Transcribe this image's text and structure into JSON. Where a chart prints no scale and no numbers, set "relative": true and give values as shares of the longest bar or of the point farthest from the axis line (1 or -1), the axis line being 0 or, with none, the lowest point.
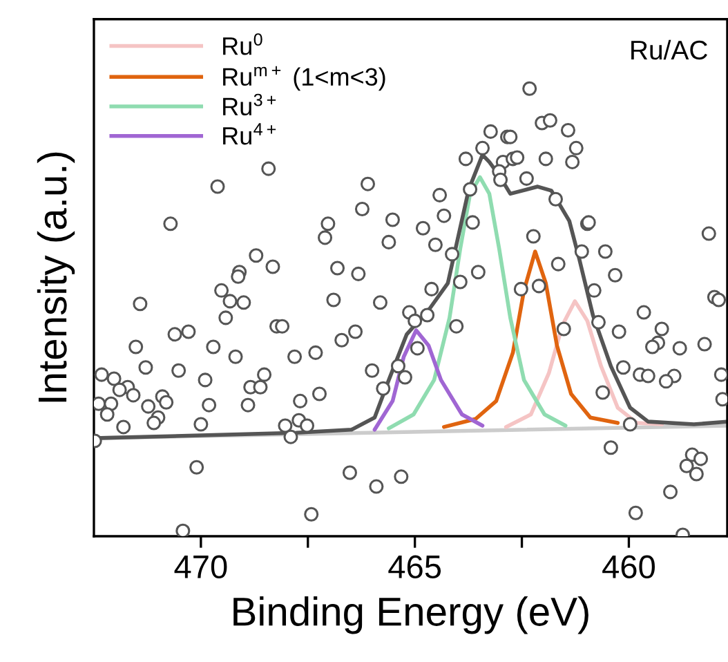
{
  "chart_data": {
    "type": "scatter",
    "relative": true,
    "xlabel": "Binding Energy (eV)",
    "ylabel": "Intensity (a.u.)",
    "annotations": [
      "Ru/AC"
    ],
    "xlim": [
      472.5,
      457.7
    ],
    "xticks": [
      470,
      {
        "value": 467.5,
        "label": null
      },
      465,
      {
        "value": 462.5,
        "label": null
      },
      460
    ],
    "tick_labels": "x",
    "grid": false,
    "legend": "top left",
    "series": [
      {
        "type": "line",
        "color": "#cccccc",
        "x": [
          472.5,
          457.7
        ],
        "values": [
          0.219,
          0.247
        ]
      },
      {
        "type": "line",
        "name": "Ru$^{0}$",
        "color": "#f5c4c4",
        "x": [
          462.87,
          462.29,
          461.87,
          461.55,
          461.26,
          460.97,
          460.65,
          460.26,
          459.81,
          459.23
        ],
        "values": [
          0.244,
          0.272,
          0.364,
          0.472,
          0.525,
          0.481,
          0.38,
          0.287,
          0.253,
          0.25
        ]
      },
      {
        "type": "line",
        "name": "Ru$^{m+}$ (1<m<3)",
        "color": "#e0640f",
        "x": [
          464.32,
          463.58,
          463.1,
          462.71,
          462.45,
          462.19,
          461.94,
          461.68,
          461.35,
          460.9,
          460.26
        ],
        "values": [
          0.244,
          0.262,
          0.302,
          0.41,
          0.549,
          0.636,
          0.565,
          0.426,
          0.318,
          0.265,
          0.253
        ]
      },
      {
        "type": "line",
        "name": "Ru$^{3+}$",
        "color": "#8fdcb0",
        "x": [
          465.61,
          465.03,
          464.55,
          464.19,
          463.94,
          463.71,
          463.48,
          463.26,
          463.03,
          462.77,
          462.45,
          461.97,
          461.48
        ],
        "values": [
          0.241,
          0.272,
          0.349,
          0.488,
          0.642,
          0.765,
          0.802,
          0.765,
          0.642,
          0.488,
          0.349,
          0.272,
          0.247
        ]
      },
      {
        "type": "line",
        "name": "Ru$^{4+}$",
        "color": "#a066d3",
        "x": [
          465.94,
          465.52,
          465.26,
          464.97,
          464.68,
          464.39,
          463.9,
          463.42
        ],
        "values": [
          0.238,
          0.302,
          0.401,
          0.46,
          0.426,
          0.349,
          0.272,
          0.247
        ]
      },
      {
        "type": "line",
        "color": "#555555",
        "x": [
          472.5,
          467.77,
          466.48,
          465.94,
          465.61,
          465.19,
          464.65,
          464.23,
          463.74,
          463.42,
          463.26,
          463.03,
          462.77,
          462.13,
          461.81,
          461.39,
          461.16,
          460.84,
          460.42,
          459.97,
          459.55,
          458.48,
          457.71
        ],
        "values": [
          0.219,
          0.231,
          0.238,
          0.265,
          0.349,
          0.451,
          0.509,
          0.565,
          0.775,
          0.852,
          0.836,
          0.806,
          0.765,
          0.781,
          0.772,
          0.704,
          0.62,
          0.494,
          0.38,
          0.287,
          0.256,
          0.25,
          0.256
        ]
      },
      {
        "marker": "circle",
        "color": "#555555",
        "x": [
          468.42,
          469.61,
          470.71,
          468.71,
          468.32,
          469.1,
          463.23,
          462.84,
          463.42,
          463.81,
          462.94,
          462.71,
          463.03,
          463.0,
          466.1,
          464.42,
          466.23,
          464.32,
          463.65,
          465.52,
          467.03,
          467.1,
          464.81,
          465.61,
          464.52,
          463.71,
          466.81,
          466.32,
          463.52,
          464.13,
          462.32,
          462.03,
          461.84,
          461.42,
          461.23,
          462.77,
          462.61,
          461.94,
          461.32,
          462.39,
          461.71,
          460.97,
          460.94,
          462.23,
          461.1,
          460.55,
          461.65,
          458.13,
          460.32,
          469.13,
          469.52,
          469.32,
          469.0,
          471.42,
          469.42,
          468.23,
          468.1,
          470.61,
          470.29,
          471.52,
          469.71,
          469.19,
          467.81,
          471.29,
          470.52,
          472.32,
          472.03,
          471.71,
          471.9,
          471.58,
          469.9,
          468.52,
          468.84,
          468.61,
          470.9,
          470.81,
          467.68,
          472.39,
          472.1,
          471.23,
          472.19,
          469.81,
          468.9,
          471.0,
          471.1,
          467.71,
          471.81,
          470.0,
          468.03,
          467.9,
          472.48,
          470.1,
          470.42,
          464.61,
          463.94,
          466.9,
          465.81,
          465.13,
          464.71,
          465.0,
          464.03,
          466.39,
          466.71,
          464.94,
          467.32,
          466.0,
          465.39,
          465.23,
          465.74,
          467.23,
          467.52,
          466.52,
          465.32,
          465.9,
          467.42,
          462.52,
          462.1,
          460.81,
          458.0,
          457.9,
          461.52,
          460.71,
          460.23,
          459.65,
          459.23,
          459.32,
          459.45,
          458.81,
          458.23,
          460.13,
          459.74,
          459.55,
          458.94,
          459.13,
          457.84,
          457.81,
          460.61,
          459.97,
          460.42,
          458.52,
          458.32,
          458.65,
          458.42,
          459.03,
          459.84,
          458.74
        ],
        "values": [
          0.821,
          0.781,
          0.698,
          0.627,
          0.602,
          0.59,
          0.904,
          0.892,
          0.867,
          0.843,
          0.836,
          0.843,
          0.815,
          0.796,
          0.787,
          0.762,
          0.731,
          0.716,
          0.701,
          0.707,
          0.698,
          0.667,
          0.688,
          0.657,
          0.651,
          0.775,
          0.599,
          0.586,
          0.59,
          0.63,
          1.0,
          0.923,
          0.929,
          0.907,
          0.867,
          0.892,
          0.846,
          0.843,
          0.836,
          0.799,
          0.753,
          0.698,
          0.701,
          0.67,
          0.636,
          0.636,
          0.608,
          0.676,
          0.583,
          0.58,
          0.549,
          0.525,
          0.522,
          0.519,
          0.488,
          0.469,
          0.469,
          0.451,
          0.457,
          0.423,
          0.423,
          0.401,
          0.401,
          0.377,
          0.37,
          0.361,
          0.352,
          0.333,
          0.327,
          0.315,
          0.349,
          0.361,
          0.333,
          0.333,
          0.312,
          0.299,
          0.302,
          0.296,
          0.296,
          0.29,
          0.272,
          0.293,
          0.293,
          0.265,
          0.253,
          0.259,
          0.244,
          0.25,
          0.247,
          0.222,
          0.213,
          0.154,
          0.012,
          0.552,
          0.568,
          0.528,
          0.522,
          0.5,
          0.494,
          0.481,
          0.469,
          0.457,
          0.438,
          0.42,
          0.41,
          0.37,
          0.38,
          0.355,
          0.33,
          0.318,
          0.247,
          0.142,
          0.133,
          0.111,
          0.049,
          0.552,
          0.559,
          0.549,
          0.534,
          0.528,
          0.463,
          0.478,
          0.457,
          0.5,
          0.463,
          0.432,
          0.423,
          0.42,
          0.429,
          0.377,
          0.361,
          0.358,
          0.358,
          0.346,
          0.361,
          0.306,
          0.321,
          0.25,
          0.198,
          0.182,
          0.173,
          0.157,
          0.139,
          0.099,
          0.052,
          0.003
        ]
      }
    ]
  }
}
